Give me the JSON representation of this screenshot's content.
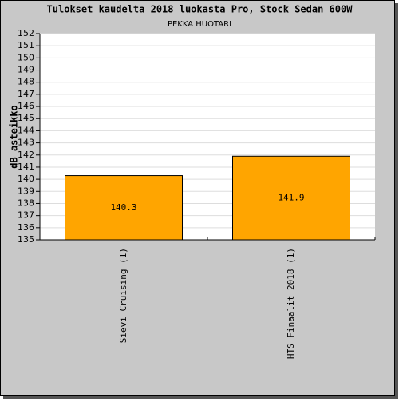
{
  "chart_data": {
    "type": "bar",
    "title": "Tulokset kaudelta 2018 luokasta Pro, Stock Sedan 600W",
    "subtitle": "PEKKA HUOTARI",
    "y_label": "dB asteikko",
    "categories": [
      "Sievi Cruising (1)",
      "HTS Finaalit 2018 (1)"
    ],
    "values": [
      140.3,
      141.9
    ],
    "color": "#ffa500",
    "ylim": [
      135,
      152
    ],
    "yticks": [
      135,
      136,
      137,
      138,
      139,
      140,
      141,
      142,
      143,
      144,
      145,
      146,
      147,
      148,
      149,
      150,
      151,
      152
    ],
    "grid": true
  }
}
